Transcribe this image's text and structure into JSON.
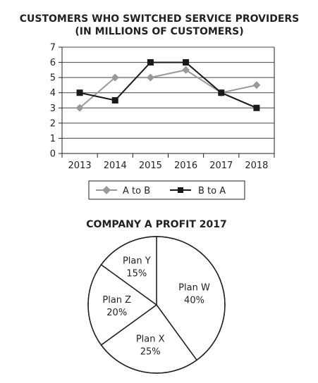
{
  "chart_data": [
    {
      "type": "line",
      "title": "CUSTOMERS WHO SWITCHED SERVICE PROVIDERS",
      "subtitle": "(IN MILLIONS OF CUSTOMERS)",
      "x": [
        "2013",
        "2014",
        "2015",
        "2016",
        "2017",
        "2018"
      ],
      "ylim": [
        0,
        7
      ],
      "yticks": [
        "0",
        "1",
        "2",
        "3",
        "4",
        "5",
        "6",
        "7"
      ],
      "grid": true,
      "legend_position": "bottom",
      "series": [
        {
          "name": "A to B",
          "values": [
            3,
            5,
            5,
            5.5,
            4,
            4.5
          ],
          "color": "#999999",
          "marker": "diamond"
        },
        {
          "name": "B to A",
          "values": [
            4,
            3.5,
            6,
            6,
            4,
            3
          ],
          "color": "#1a1a1a",
          "marker": "square"
        }
      ]
    },
    {
      "type": "pie",
      "title": "COMPANY A PROFIT 2017",
      "slices": [
        {
          "name": "Plan W",
          "label": "40%",
          "value": 40
        },
        {
          "name": "Plan X",
          "label": "25%",
          "value": 25
        },
        {
          "name": "Plan Z",
          "label": "20%",
          "value": 20
        },
        {
          "name": "Plan Y",
          "label": "15%",
          "value": 15
        }
      ]
    }
  ]
}
